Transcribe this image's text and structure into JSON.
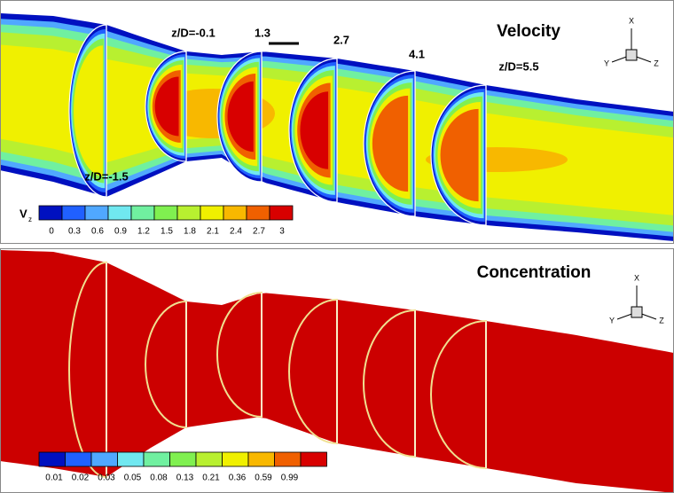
{
  "panels": [
    {
      "title": "Velocity",
      "annotations": [
        "z/D=-0.1",
        "1.3",
        "2.7",
        "4.1",
        "z/D=5.5",
        "z/D=-1.5"
      ],
      "colorbar": {
        "label": "V",
        "label_sub": "z",
        "ticks": [
          "0",
          "0.3",
          "0.6",
          "0.9",
          "1.2",
          "1.5",
          "1.8",
          "2.1",
          "2.4",
          "2.7",
          "3"
        ],
        "colors": [
          "#0010c0",
          "#2060ff",
          "#50a8ff",
          "#70e8f0",
          "#70f0a0",
          "#80f050",
          "#b8f030",
          "#f0f000",
          "#f8b800",
          "#f06000",
          "#d80000"
        ]
      },
      "axes": [
        "X",
        "Y",
        "Z"
      ]
    },
    {
      "title": "Concentration",
      "colorbar": {
        "ticks": [
          "0.01",
          "0.02",
          "0.03",
          "0.05",
          "0.08",
          "0.13",
          "0.21",
          "0.36",
          "0.59",
          "0.99"
        ],
        "colors": [
          "#0010c0",
          "#2060ff",
          "#50a8ff",
          "#70e8f0",
          "#70f0a0",
          "#80f050",
          "#b8f030",
          "#f0f000",
          "#f8b800",
          "#f06000",
          "#d80000"
        ]
      },
      "axes": [
        "X",
        "Y",
        "Z"
      ]
    }
  ]
}
